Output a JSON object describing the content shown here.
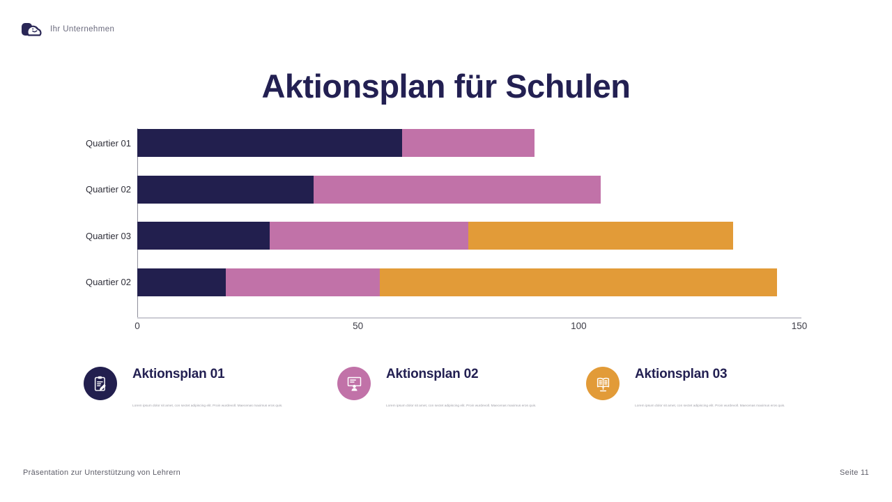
{
  "header": {
    "logo_label": "Ihr Unternehmen"
  },
  "title": "Aktionsplan für Schulen",
  "chart_data": {
    "type": "bar",
    "orientation": "horizontal",
    "stacked": true,
    "categories": [
      "Quartier 01",
      "Quartier 02",
      "Quartier 03",
      "Quartier 02"
    ],
    "series": [
      {
        "name": "Aktionsplan 01",
        "color": "#221F4E",
        "values": [
          60,
          40,
          30,
          20
        ]
      },
      {
        "name": "Aktionsplan 02",
        "color": "#C172A8",
        "values": [
          30,
          65,
          45,
          35
        ]
      },
      {
        "name": "Aktionsplan 03",
        "color": "#E29B38",
        "values": [
          0,
          0,
          60,
          90
        ]
      }
    ],
    "totals": [
      90,
      105,
      135,
      145
    ],
    "xlim": [
      0,
      150
    ],
    "xticks": [
      0,
      50,
      100,
      150
    ],
    "grid": false,
    "legend_position": "below-as-cards"
  },
  "legend_cards": [
    {
      "title": "Aktionsplan 01",
      "icon": "clipboard-pencil-icon",
      "color": "#221F4E",
      "description": "Lorem ipsum dolor sit amet, con sectet adipiscing elit. Proin wurdevoll. Maecenas maximus eros quis."
    },
    {
      "title": "Aktionsplan 02",
      "icon": "presentation-person-icon",
      "color": "#C172A8",
      "description": "Lorem ipsum dolor sit amet, con sectet adipiscing elit. Proin wurdevoll. Maecenas maximus eros quis."
    },
    {
      "title": "Aktionsplan 03",
      "icon": "book-screen-icon",
      "color": "#E29B38",
      "description": "Lorem ipsum dolor sit amet, con sectet adipiscing elit. Proin wurdevoll. Maecenas maximus eros quis."
    }
  ],
  "footer": {
    "left": "Präsentation zur Unterstützung von Lehrern",
    "right": "Seite 11"
  }
}
